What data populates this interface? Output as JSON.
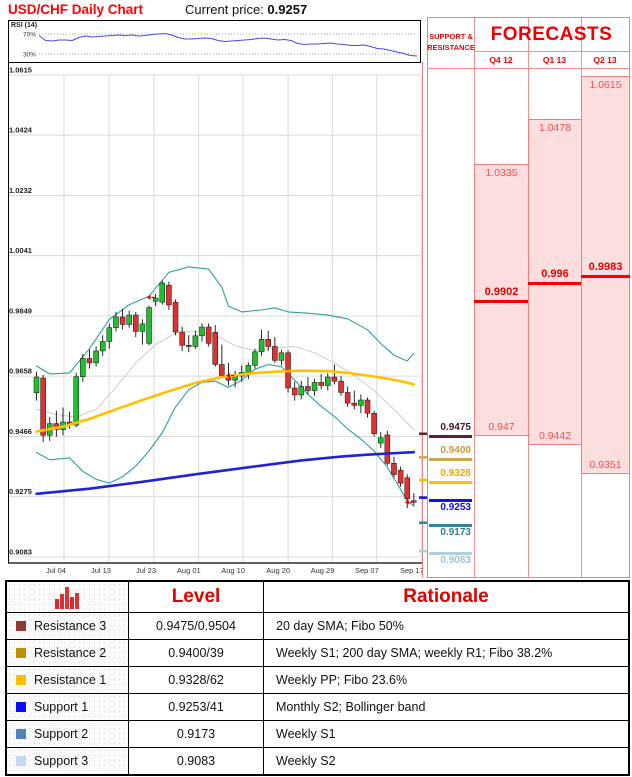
{
  "header": {
    "title": "USD/CHF Daily Chart",
    "current_price_label": "Current price:",
    "current_price_value": "0.9257"
  },
  "panel": {
    "sr_header_line1": "SUPPORT &",
    "sr_header_line2": "RESISTANCE",
    "forecasts_header": "FORECASTS"
  },
  "forecasts": [
    {
      "quarter": "Q4 12",
      "high": 1.0335,
      "forecast": 0.9902,
      "low": 0.947,
      "high_label": "1.0335",
      "forecast_label": "0.9902",
      "low_label": "0.947"
    },
    {
      "quarter": "Q1 13",
      "high": 1.0478,
      "forecast": 0.996,
      "low": 0.9442,
      "high_label": "1.0478",
      "forecast_label": "0.996",
      "low_label": "0.9442"
    },
    {
      "quarter": "Q2 13",
      "high": 1.0615,
      "forecast": 0.9983,
      "low": 0.9351,
      "high_label": "1.0615",
      "forecast_label": "0.9983",
      "low_label": "0.9351"
    }
  ],
  "levels": [
    {
      "id": "resistance-3",
      "price": 0.9475,
      "label": "0.9475",
      "type": "resistance",
      "line": "#5b2232",
      "text": "#45182a",
      "swatch": "#943634"
    },
    {
      "id": "resistance-2",
      "price": 0.94,
      "label": "0.9400",
      "type": "resistance",
      "line": "#cfa84f",
      "text": "#c39b3f",
      "swatch": "#bf8f00"
    },
    {
      "id": "resistance-1",
      "price": 0.9328,
      "label": "0.9328",
      "type": "resistance",
      "line": "#ffc000",
      "text": "#eda900",
      "swatch": "#ffc000"
    },
    {
      "id": "support-1",
      "price": 0.9253,
      "label": "0.9253",
      "type": "support",
      "line": "#1414e0",
      "text": "#0d0dd6",
      "swatch": "#0a0aff"
    },
    {
      "id": "support-2",
      "price": 0.9173,
      "label": "0.9173",
      "type": "support",
      "line": "#31849b",
      "text": "#2d7f96",
      "swatch": "#4f81bd"
    },
    {
      "id": "support-3",
      "price": 0.9083,
      "label": "0.9083",
      "type": "support",
      "line": "#aecfdd",
      "text": "#9fc2d4",
      "swatch": "#c6d9f1"
    }
  ],
  "table": {
    "headers": {
      "icon": "bar-chart-icon",
      "level": "Level",
      "rationale": "Rationale"
    },
    "rows": [
      {
        "name": "Resistance 3",
        "level": "0.9475/0.9504",
        "rationale": "20 day SMA; Fibo 50%",
        "swatch": "#943634"
      },
      {
        "name": "Resistance 2",
        "level": "0.9400/39",
        "rationale": "Weekly S1; 200 day SMA; weekly R1; Fibo 38.2%",
        "swatch": "#bf8f00"
      },
      {
        "name": "Resistance 1",
        "level": "0.9328/62",
        "rationale": "Weekly PP; Fibo 23.6%",
        "swatch": "#ffc000"
      },
      {
        "name": "Support 1",
        "level": "0.9253/41",
        "rationale": "Monthly S2; Bollinger band",
        "swatch": "#0a0aff"
      },
      {
        "name": "Support 2",
        "level": "0.9173",
        "rationale": "Weekly S1",
        "swatch": "#4f81bd"
      },
      {
        "name": "Support 3",
        "level": "0.9083",
        "rationale": "Weekly S2",
        "swatch": "#c6d9f1"
      }
    ]
  },
  "colors": {
    "up": "#1fbf2f",
    "down": "#e03131",
    "wick": "#111111",
    "bollinger": "#2f9e9e",
    "bollinger_mid": "#cccccc",
    "sma_slow": "#ffc000",
    "sma_200": "#2121d6",
    "grid": "#d9d9d9",
    "axis": "#000000",
    "salmon": "#f08080",
    "pink_fill": "#fcdede",
    "forecast_red": "#f50000",
    "rsi_line": "#4848e8",
    "title_red": "#ff0000"
  },
  "chart_data": {
    "type": "candlestick",
    "title": "USD/CHF Daily Chart",
    "current_price": 0.9257,
    "ylim": [
      0.9083,
      1.0615
    ],
    "y_tick_labels": [
      "1.0615",
      "1.0424",
      "1.0232",
      "1.0041",
      "0.9849",
      "0.9658",
      "0.9466",
      "0.9275",
      "0.9083"
    ],
    "x_ticks": [
      {
        "label": "Jul 04",
        "i": 4.15
      },
      {
        "label": "Jul 13",
        "i": 10.95
      },
      {
        "label": "Jul 23",
        "i": 17.75
      },
      {
        "label": "Aug 01",
        "i": 24.5
      },
      {
        "label": "Aug 10",
        "i": 31.2
      },
      {
        "label": "Aug 20",
        "i": 38.0
      },
      {
        "label": "Aug 29",
        "i": 44.7
      },
      {
        "label": "Sep 07",
        "i": 51.4
      },
      {
        "label": "Sep 17",
        "i": 58.2
      }
    ],
    "candles_ohlc": [
      [
        0.9605,
        0.9672,
        0.958,
        0.9655
      ],
      [
        0.9652,
        0.9662,
        0.9448,
        0.947
      ],
      [
        0.947,
        0.9528,
        0.9452,
        0.9507
      ],
      [
        0.9507,
        0.9548,
        0.9465,
        0.9488
      ],
      [
        0.9488,
        0.9558,
        0.947,
        0.9512
      ],
      [
        0.9512,
        0.9545,
        0.949,
        0.9502
      ],
      [
        0.9502,
        0.9668,
        0.9496,
        0.9656
      ],
      [
        0.9656,
        0.9728,
        0.964,
        0.9714
      ],
      [
        0.9714,
        0.9742,
        0.9682,
        0.97
      ],
      [
        0.97,
        0.9752,
        0.9688,
        0.9738
      ],
      [
        0.9738,
        0.9788,
        0.9722,
        0.9768
      ],
      [
        0.9768,
        0.9825,
        0.9745,
        0.9812
      ],
      [
        0.9812,
        0.9862,
        0.98,
        0.9846
      ],
      [
        0.9846,
        0.9872,
        0.9806,
        0.9822
      ],
      [
        0.9822,
        0.9866,
        0.9812,
        0.9852
      ],
      [
        0.9852,
        0.9862,
        0.9782,
        0.98
      ],
      [
        0.98,
        0.9838,
        0.9758,
        0.9824
      ],
      [
        0.9762,
        0.9882,
        0.9756,
        0.9876
      ],
      [
        0.9896,
        0.992,
        0.988,
        0.9906
      ],
      [
        0.9893,
        0.9962,
        0.9885,
        0.9954
      ],
      [
        0.9947,
        0.9958,
        0.9868,
        0.9884
      ],
      [
        0.9893,
        0.9902,
        0.9788,
        0.9798
      ],
      [
        0.9798,
        0.9815,
        0.9738,
        0.9756
      ],
      [
        0.9756,
        0.9788,
        0.9734,
        0.9752
      ],
      [
        0.9752,
        0.9802,
        0.9744,
        0.9786
      ],
      [
        0.9786,
        0.9826,
        0.9768,
        0.9814
      ],
      [
        0.9814,
        0.9825,
        0.9752,
        0.9762
      ],
      [
        0.9797,
        0.982,
        0.9688,
        0.9695
      ],
      [
        0.9695,
        0.9758,
        0.9652,
        0.966
      ],
      [
        0.966,
        0.97,
        0.9628,
        0.9645
      ],
      [
        0.9645,
        0.9675,
        0.9622,
        0.9658
      ],
      [
        0.9658,
        0.9692,
        0.964,
        0.967
      ],
      [
        0.967,
        0.9702,
        0.9648,
        0.9692
      ],
      [
        0.9692,
        0.9745,
        0.9682,
        0.9735
      ],
      [
        0.9735,
        0.9806,
        0.9722,
        0.9775
      ],
      [
        0.9775,
        0.9802,
        0.9738,
        0.9752
      ],
      [
        0.9752,
        0.9782,
        0.97,
        0.9708
      ],
      [
        0.9708,
        0.9742,
        0.9692,
        0.9732
      ],
      [
        0.9732,
        0.974,
        0.9606,
        0.962
      ],
      [
        0.962,
        0.964,
        0.958,
        0.9598
      ],
      [
        0.9598,
        0.9642,
        0.9585,
        0.9625
      ],
      [
        0.9625,
        0.9655,
        0.96,
        0.9612
      ],
      [
        0.9612,
        0.965,
        0.9596,
        0.9638
      ],
      [
        0.9638,
        0.9665,
        0.9616,
        0.9628
      ],
      [
        0.9628,
        0.9668,
        0.9612,
        0.9655
      ],
      [
        0.9655,
        0.9695,
        0.9632,
        0.9642
      ],
      [
        0.9642,
        0.9658,
        0.9596,
        0.9606
      ],
      [
        0.9606,
        0.9625,
        0.956,
        0.9572
      ],
      [
        0.9572,
        0.9612,
        0.9552,
        0.9565
      ],
      [
        0.9565,
        0.96,
        0.954,
        0.9582
      ],
      [
        0.9582,
        0.959,
        0.9526,
        0.954
      ],
      [
        0.954,
        0.9548,
        0.9466,
        0.9475
      ],
      [
        0.9445,
        0.948,
        0.943,
        0.9462
      ],
      [
        0.9471,
        0.9484,
        0.9374,
        0.9381
      ],
      [
        0.9381,
        0.9402,
        0.9336,
        0.9345
      ],
      [
        0.9359,
        0.937,
        0.9306,
        0.9318
      ],
      [
        0.9335,
        0.9346,
        0.9238,
        0.9268
      ],
      [
        0.9262,
        0.9286,
        0.9246,
        0.9257
      ]
    ],
    "overlays": [
      {
        "name": "bollinger-upper",
        "color": "#2f9e9e",
        "width": 1.1,
        "points": [
          [
            0,
            0.969
          ],
          [
            2,
            0.9665
          ],
          [
            5,
            0.9668
          ],
          [
            8,
            0.9745
          ],
          [
            11,
            0.9838
          ],
          [
            14,
            0.9885
          ],
          [
            17,
            0.9912
          ],
          [
            20,
            0.9988
          ],
          [
            23,
            1.0005
          ],
          [
            26,
            0.9998
          ],
          [
            28,
            0.994
          ],
          [
            29,
            0.988
          ],
          [
            31,
            0.9862
          ],
          [
            34,
            0.9868
          ],
          [
            36,
            0.9875
          ],
          [
            38,
            0.9862
          ],
          [
            41,
            0.9858
          ],
          [
            44,
            0.9852
          ],
          [
            47,
            0.984
          ],
          [
            50,
            0.9805
          ],
          [
            52,
            0.9762
          ],
          [
            54,
            0.9724
          ],
          [
            56,
            0.9706
          ],
          [
            57,
            0.973
          ]
        ]
      },
      {
        "name": "bollinger-lower",
        "color": "#2f9e9e",
        "width": 1.1,
        "points": [
          [
            0,
            0.9415
          ],
          [
            2,
            0.9392
          ],
          [
            5,
            0.9398
          ],
          [
            7,
            0.9355
          ],
          [
            9,
            0.933
          ],
          [
            11,
            0.9318
          ],
          [
            13,
            0.9338
          ],
          [
            15,
            0.9372
          ],
          [
            17,
            0.942
          ],
          [
            19,
            0.9478
          ],
          [
            21,
            0.956
          ],
          [
            23,
            0.9615
          ],
          [
            25,
            0.9638
          ],
          [
            27,
            0.9642
          ],
          [
            29,
            0.9622
          ],
          [
            31,
            0.9645
          ],
          [
            33,
            0.968
          ],
          [
            35,
            0.9695
          ],
          [
            37,
            0.9688
          ],
          [
            39,
            0.9645
          ],
          [
            41,
            0.96
          ],
          [
            43,
            0.9562
          ],
          [
            45,
            0.953
          ],
          [
            47,
            0.949
          ],
          [
            49,
            0.9458
          ],
          [
            51,
            0.942
          ],
          [
            53,
            0.9368
          ],
          [
            55,
            0.9298
          ],
          [
            56,
            0.9262
          ],
          [
            57,
            0.9245
          ]
        ]
      },
      {
        "name": "bollinger-mid-20-sma",
        "color": "#cccccc",
        "width": 1,
        "points": [
          [
            0,
            0.9552
          ],
          [
            3,
            0.9536
          ],
          [
            6,
            0.9528
          ],
          [
            9,
            0.9552
          ],
          [
            12,
            0.9622
          ],
          [
            15,
            0.97
          ],
          [
            18,
            0.9758
          ],
          [
            21,
            0.9795
          ],
          [
            24,
            0.9802
          ],
          [
            27,
            0.9788
          ],
          [
            30,
            0.9755
          ],
          [
            33,
            0.9738
          ],
          [
            36,
            0.9748
          ],
          [
            39,
            0.9752
          ],
          [
            42,
            0.9732
          ],
          [
            45,
            0.97
          ],
          [
            48,
            0.966
          ],
          [
            51,
            0.9612
          ],
          [
            54,
            0.9552
          ],
          [
            57,
            0.9488
          ]
        ]
      },
      {
        "name": "sma-slow",
        "color": "#ffc000",
        "width": 2.6,
        "points": [
          [
            0,
            0.9482
          ],
          [
            4,
            0.9497
          ],
          [
            8,
            0.9522
          ],
          [
            12,
            0.9552
          ],
          [
            16,
            0.9582
          ],
          [
            20,
            0.961
          ],
          [
            24,
            0.9636
          ],
          [
            28,
            0.9655
          ],
          [
            32,
            0.9666
          ],
          [
            36,
            0.9672
          ],
          [
            40,
            0.9675
          ],
          [
            44,
            0.9674
          ],
          [
            47,
            0.9668
          ],
          [
            50,
            0.966
          ],
          [
            53,
            0.965
          ],
          [
            55,
            0.9642
          ],
          [
            57,
            0.9632
          ]
        ]
      },
      {
        "name": "sma-200",
        "color": "#2121d6",
        "width": 2.6,
        "points": [
          [
            0,
            0.9284
          ],
          [
            8,
            0.93
          ],
          [
            16,
            0.9322
          ],
          [
            24,
            0.9346
          ],
          [
            32,
            0.9368
          ],
          [
            40,
            0.939
          ],
          [
            46,
            0.9402
          ],
          [
            50,
            0.9408
          ],
          [
            53,
            0.9412
          ],
          [
            57,
            0.9416
          ]
        ]
      }
    ],
    "markers": [
      {
        "i": 18,
        "price": 0.9908
      },
      {
        "i": 30,
        "price": 0.966
      },
      {
        "i": 57,
        "price": 0.9257
      }
    ],
    "rsi": {
      "label": "RSI (14)",
      "upper_tick": "70%",
      "lower_tick": "30%",
      "values": [
        67,
        57,
        56,
        58,
        58,
        57,
        63,
        66,
        64,
        65,
        66,
        67,
        68,
        67,
        68,
        66,
        67,
        69,
        70,
        71,
        68,
        63,
        60,
        60,
        61,
        62,
        61,
        57,
        55,
        56,
        57,
        58,
        59,
        61,
        62,
        60,
        58,
        59,
        57,
        51,
        49,
        50,
        50,
        51,
        52,
        50,
        49,
        47,
        47,
        48,
        45,
        41,
        40,
        37,
        34,
        31,
        27,
        26
      ]
    }
  }
}
